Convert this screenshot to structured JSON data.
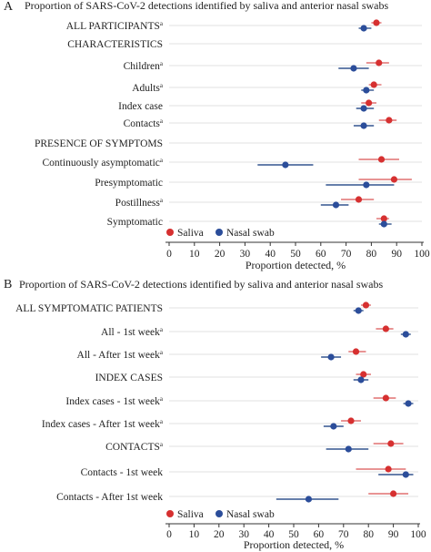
{
  "colors": {
    "saliva": "#d63030",
    "nasal": "#2b4d9a",
    "ci_saliva": "#e07070",
    "ci_nasal": "#34558f",
    "grid": "#d9d9d9",
    "axis": "#333333"
  },
  "chart_data": [
    {
      "type": "scatter",
      "panel_letter": "A",
      "title": "Proportion of SARS-CoV-2 detections identified by saliva and anterior nasal swabs",
      "xlabel": "Proportion detected, %",
      "xlim": [
        0,
        100
      ],
      "xticks": [
        "0",
        "10",
        "20",
        "30",
        "40",
        "50",
        "60",
        "70",
        "80",
        "90",
        "100"
      ],
      "legend": {
        "placement": "bottom-left",
        "items": [
          "Saliva",
          "Nasal swab"
        ]
      },
      "rows": [
        {
          "label": "ALL PARTICIPANTS",
          "sup": "a",
          "header": false,
          "saliva": {
            "value": 82,
            "ci": [
              80,
              84
            ]
          },
          "nasal": {
            "value": 77,
            "ci": [
              75,
              80
            ]
          }
        },
        {
          "label": "CHARACTERISTICS",
          "sup": "",
          "header": true
        },
        {
          "label": "Children",
          "sup": "a",
          "header": false,
          "saliva": {
            "value": 83,
            "ci": [
              78,
              87
            ]
          },
          "nasal": {
            "value": 73,
            "ci": [
              67,
              79
            ]
          }
        },
        {
          "label": "Adults",
          "sup": "a",
          "header": false,
          "saliva": {
            "value": 81,
            "ci": [
              79,
              84
            ]
          },
          "nasal": {
            "value": 78,
            "ci": [
              76,
              81
            ]
          }
        },
        {
          "label": "Index case",
          "sup": "",
          "header": false,
          "saliva": {
            "value": 79,
            "ci": [
              76,
              82
            ]
          },
          "nasal": {
            "value": 77,
            "ci": [
              74,
              81
            ]
          }
        },
        {
          "label": "Contacts",
          "sup": "a",
          "header": false,
          "saliva": {
            "value": 87,
            "ci": [
              83,
              90
            ]
          },
          "nasal": {
            "value": 77,
            "ci": [
              73,
              81
            ]
          }
        },
        {
          "label": "PRESENCE OF SYMPTOMS",
          "sup": "",
          "header": true
        },
        {
          "label": "Continuously asymptomatic",
          "sup": "a",
          "header": false,
          "saliva": {
            "value": 84,
            "ci": [
              75,
              91
            ]
          },
          "nasal": {
            "value": 46,
            "ci": [
              35,
              57
            ]
          }
        },
        {
          "label": "Presymptomatic",
          "sup": "",
          "header": false,
          "saliva": {
            "value": 89,
            "ci": [
              75,
              96
            ]
          },
          "nasal": {
            "value": 78,
            "ci": [
              62,
              89
            ]
          }
        },
        {
          "label": "Postillness",
          "sup": "a",
          "header": false,
          "saliva": {
            "value": 75,
            "ci": [
              68,
              81
            ]
          },
          "nasal": {
            "value": 66,
            "ci": [
              60,
              71
            ]
          }
        },
        {
          "label": "Symptomatic",
          "sup": "",
          "header": false,
          "saliva": {
            "value": 85,
            "ci": [
              82,
              87
            ]
          },
          "nasal": {
            "value": 85,
            "ci": [
              83,
              88
            ]
          }
        }
      ]
    },
    {
      "type": "scatter",
      "panel_letter": "B",
      "title": "Proportion of SARS-CoV-2 detections identified by saliva and anterior nasal swabs",
      "xlabel": "Proportion detected, %",
      "xlim": [
        0,
        100
      ],
      "xticks": [
        "0",
        "10",
        "20",
        "30",
        "40",
        "50",
        "60",
        "70",
        "80",
        "90",
        "100"
      ],
      "legend": {
        "placement": "bottom-left",
        "items": [
          "Saliva",
          "Nasal swab"
        ]
      },
      "rows": [
        {
          "label": "ALL SYMPTOMATIC PATIENTS",
          "sup": "",
          "header": false,
          "saliva": {
            "value": 79,
            "ci": [
              77,
              81
            ]
          },
          "nasal": {
            "value": 76,
            "ci": [
              74,
              78
            ]
          }
        },
        {
          "label": "All - 1st week",
          "sup": "a",
          "header": false,
          "saliva": {
            "value": 87,
            "ci": [
              83,
              90
            ]
          },
          "nasal": {
            "value": 95,
            "ci": [
              93,
              97
            ]
          }
        },
        {
          "label": "All - After 1st week",
          "sup": "a",
          "header": false,
          "saliva": {
            "value": 75,
            "ci": [
              72,
              79
            ]
          },
          "nasal": {
            "value": 65,
            "ci": [
              61,
              69
            ]
          }
        },
        {
          "label": "INDEX CASES",
          "sup": "",
          "header": false,
          "saliva": {
            "value": 78,
            "ci": [
              75,
              81
            ]
          },
          "nasal": {
            "value": 77,
            "ci": [
              74,
              80
            ]
          }
        },
        {
          "label": "Index cases - 1st week",
          "sup": "a",
          "header": false,
          "saliva": {
            "value": 87,
            "ci": [
              82,
              91
            ]
          },
          "nasal": {
            "value": 96,
            "ci": [
              94,
              98
            ]
          }
        },
        {
          "label": "Index cases - After 1st week",
          "sup": "a",
          "header": false,
          "saliva": {
            "value": 73,
            "ci": [
              69,
              77
            ]
          },
          "nasal": {
            "value": 66,
            "ci": [
              62,
              70
            ]
          }
        },
        {
          "label": "CONTACTS",
          "sup": "a",
          "header": false,
          "saliva": {
            "value": 89,
            "ci": [
              82,
              94
            ]
          },
          "nasal": {
            "value": 72,
            "ci": [
              63,
              80
            ]
          }
        },
        {
          "label": "Contacts - 1st week",
          "sup": "",
          "header": false,
          "saliva": {
            "value": 88,
            "ci": [
              75,
              95
            ]
          },
          "nasal": {
            "value": 95,
            "ci": [
              84,
              98
            ]
          }
        },
        {
          "label": "Contacts - After 1st week",
          "sup": "",
          "header": false,
          "saliva": {
            "value": 90,
            "ci": [
              80,
              96
            ]
          },
          "nasal": {
            "value": 56,
            "ci": [
              43,
              68
            ]
          }
        }
      ]
    }
  ]
}
